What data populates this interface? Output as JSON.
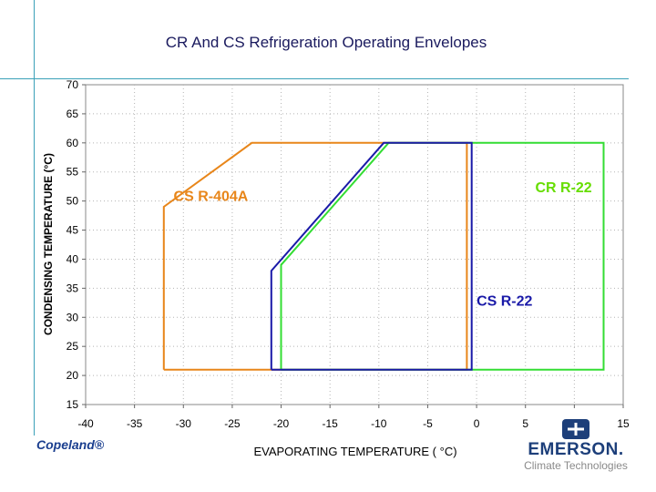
{
  "chart_data": {
    "type": "line",
    "title": "CR And CS Refrigeration Operating Envelopes",
    "xlabel": "EVAPORATING TEMPERATURE ( °C)",
    "ylabel": "CONDENSING TEMPERATURE (°C)",
    "xlim": [
      -40,
      15
    ],
    "ylim": [
      15,
      70
    ],
    "xticks": [
      -40,
      -35,
      -30,
      -25,
      -20,
      -15,
      -10,
      -5,
      0,
      5,
      10,
      15
    ],
    "yticks": [
      15,
      20,
      25,
      30,
      35,
      40,
      45,
      50,
      55,
      60,
      65,
      70
    ],
    "grid": true,
    "series": [
      {
        "name": "CS R-404A",
        "color": "#e8861a",
        "points": [
          [
            -32,
            21
          ],
          [
            -32,
            49
          ],
          [
            -23,
            60
          ],
          [
            -1,
            60
          ],
          [
            -1,
            21
          ],
          [
            -32,
            21
          ]
        ]
      },
      {
        "name": "CR R-22",
        "color": "#33dd33",
        "points": [
          [
            -20,
            21
          ],
          [
            -20,
            39
          ],
          [
            -9,
            60
          ],
          [
            13,
            60
          ],
          [
            13,
            21
          ],
          [
            -20,
            21
          ]
        ]
      },
      {
        "name": "CS R-22",
        "color": "#1a1aa8",
        "points": [
          [
            -21,
            21
          ],
          [
            -21,
            38
          ],
          [
            -9.5,
            60
          ],
          [
            -0.5,
            60
          ],
          [
            -0.5,
            21
          ],
          [
            -21,
            21
          ]
        ]
      }
    ],
    "annotations": [
      {
        "text": "CS R-404A",
        "x": -31,
        "y": 50,
        "color": "#e8861a"
      },
      {
        "text": "CR R-22",
        "x": 6,
        "y": 51.5,
        "color": "#66dd00"
      },
      {
        "text": "CS R-22",
        "x": 0,
        "y": 32,
        "color": "#1a1aa8"
      }
    ]
  },
  "footer": {
    "left_logo": "Copeland®",
    "brand": "EMERSON.",
    "brand_sub": "Climate Technologies"
  }
}
